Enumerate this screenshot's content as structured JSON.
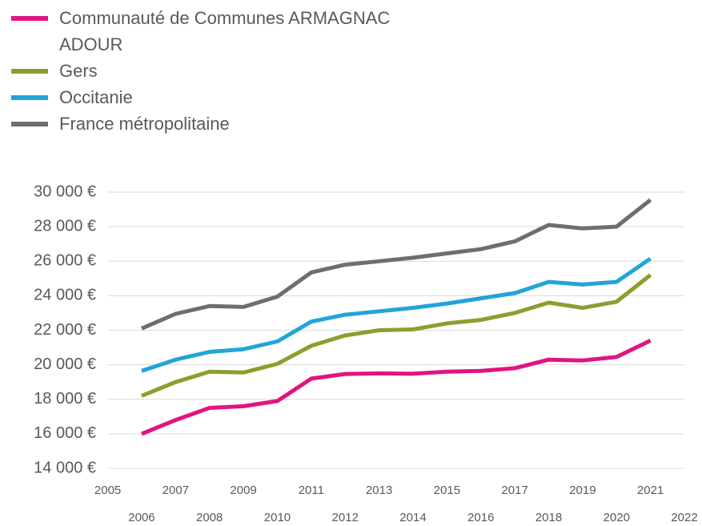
{
  "chart_data": {
    "type": "line",
    "x": [
      2006,
      2007,
      2008,
      2009,
      2010,
      2011,
      2012,
      2013,
      2014,
      2015,
      2016,
      2017,
      2018,
      2019,
      2020,
      2021
    ],
    "series": [
      {
        "name": "Communauté de Communes  ARMAGNAC ADOUR",
        "color": "#e0157f",
        "values": [
          16000,
          16800,
          17500,
          17600,
          17900,
          19200,
          19470,
          19500,
          19480,
          19600,
          19650,
          19800,
          20300,
          20250,
          20450,
          21400
        ]
      },
      {
        "name": "Gers",
        "color": "#8aa02e",
        "values": [
          18200,
          19000,
          19600,
          19550,
          20050,
          21100,
          21700,
          22000,
          22050,
          22400,
          22600,
          23000,
          23600,
          23300,
          23650,
          25200
        ]
      },
      {
        "name": "Occitanie",
        "color": "#21a5d8",
        "values": [
          19650,
          20300,
          20750,
          20900,
          21350,
          22500,
          22900,
          23100,
          23300,
          23550,
          23850,
          24150,
          24800,
          24650,
          24800,
          26150
        ]
      },
      {
        "name": "France métropolitaine",
        "color": "#6d6e70",
        "values": [
          22100,
          22950,
          23400,
          23350,
          23950,
          25350,
          25800,
          26000,
          26200,
          26450,
          26700,
          27150,
          28100,
          27900,
          28000,
          29550
        ]
      }
    ],
    "xlim": [
      2005,
      2022
    ],
    "xticks": [
      2005,
      2006,
      2007,
      2008,
      2009,
      2010,
      2011,
      2012,
      2013,
      2014,
      2015,
      2016,
      2017,
      2018,
      2019,
      2020,
      2021,
      2022
    ],
    "ylim": [
      14000,
      30000
    ],
    "yticks": [
      {
        "value": 14000,
        "label": "14 000 €"
      },
      {
        "value": 16000,
        "label": "16 000 €"
      },
      {
        "value": 18000,
        "label": "18 000 €"
      },
      {
        "value": 20000,
        "label": "20 000 €"
      },
      {
        "value": 22000,
        "label": "22 000 €"
      },
      {
        "value": 24000,
        "label": "24 000 €"
      },
      {
        "value": 26000,
        "label": "26 000 €"
      },
      {
        "value": 28000,
        "label": "28 000 €"
      },
      {
        "value": 30000,
        "label": "30 000 €"
      }
    ],
    "grid": true,
    "legend": "top-left"
  }
}
